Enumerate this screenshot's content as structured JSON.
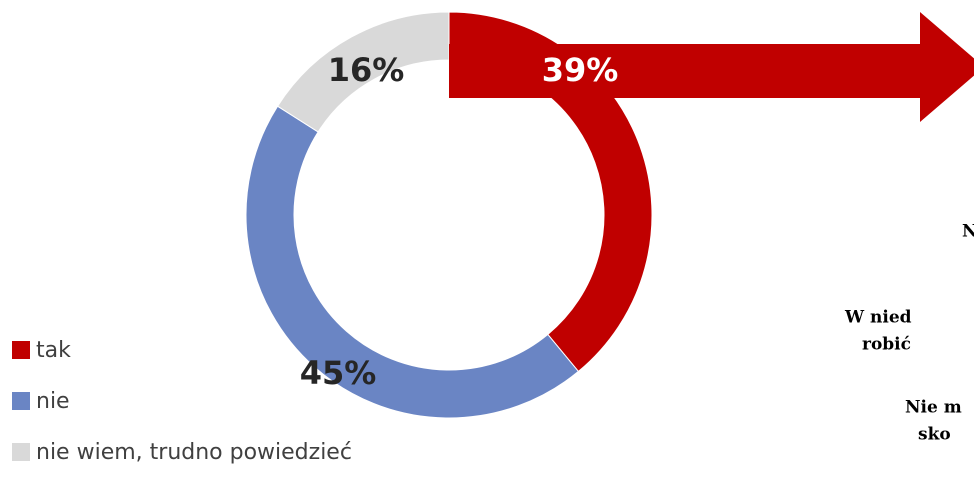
{
  "chart_data": {
    "type": "donut",
    "categories": [
      "tak",
      "nie",
      "nie wiem, trudno powiedzieć"
    ],
    "values": [
      39,
      45,
      16
    ],
    "value_labels": [
      "39%",
      "45%",
      "16%"
    ],
    "colors": [
      "#c00000",
      "#6a85c4",
      "#d9d9d9"
    ],
    "legend": "bottom-left"
  },
  "side_text": [
    "N",
    "W nied",
    "robić",
    "Nie m",
    "sko"
  ]
}
